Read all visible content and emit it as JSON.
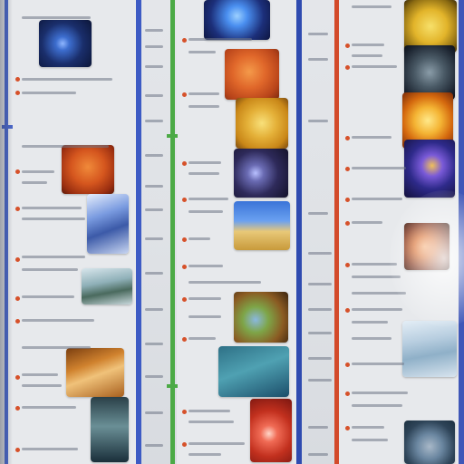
{
  "scene": {
    "description_colors": {
      "paper": "#e7e9ec",
      "line_blue": "#3d5bc4",
      "line_green": "#4caa46",
      "line_red": "#d34a2a",
      "label_dot": "#d6512a"
    },
    "tiles": [
      {
        "id": "t1",
        "colors": [
          "#1a2e6b",
          "#3d6ecf"
        ]
      },
      {
        "id": "t2",
        "colors": [
          "#c5431a",
          "#e88a3a"
        ]
      },
      {
        "id": "t3",
        "colors": [
          "#5b7fcf",
          "#e6eefc"
        ]
      },
      {
        "id": "t4",
        "colors": [
          "#6f8f9a",
          "#d8e6ec"
        ]
      },
      {
        "id": "t5",
        "colors": [
          "#b06a1e",
          "#f0c27a"
        ]
      },
      {
        "id": "t6",
        "colors": [
          "#1a2f3a",
          "#6a8f96"
        ]
      },
      {
        "id": "t7",
        "colors": [
          "#1c2f7a",
          "#62a3f0"
        ]
      },
      {
        "id": "t8",
        "colors": [
          "#b8441a",
          "#f07a2e"
        ]
      },
      {
        "id": "t9",
        "colors": [
          "#c98718",
          "#f4d058"
        ]
      },
      {
        "id": "t10",
        "colors": [
          "#201d3a",
          "#6a6bb3"
        ]
      },
      {
        "id": "t11",
        "colors": [
          "#3a74d8",
          "#f2d48a"
        ]
      },
      {
        "id": "t12",
        "colors": [
          "#5b3e20",
          "#7ea548"
        ]
      },
      {
        "id": "t13",
        "colors": [
          "#1c4e6a",
          "#4fa1b2"
        ]
      },
      {
        "id": "t14",
        "colors": [
          "#b2281c",
          "#f06b55"
        ]
      },
      {
        "id": "t15",
        "colors": [
          "#c59a12",
          "#f7e06a"
        ]
      },
      {
        "id": "t16",
        "colors": [
          "#1c2430",
          "#6a7e8c"
        ]
      },
      {
        "id": "t17",
        "colors": [
          "#d4680e",
          "#ffd34a"
        ]
      },
      {
        "id": "t18",
        "colors": [
          "#1c1e5a",
          "#7a5ad8"
        ]
      },
      {
        "id": "t19",
        "colors": [
          "#4a1e16",
          "#d66a2a"
        ]
      },
      {
        "id": "t20",
        "colors": [
          "#c2d4e2",
          "#8fb0c8"
        ]
      },
      {
        "id": "t21",
        "colors": [
          "#1c3040",
          "#6a86a0"
        ]
      }
    ]
  }
}
